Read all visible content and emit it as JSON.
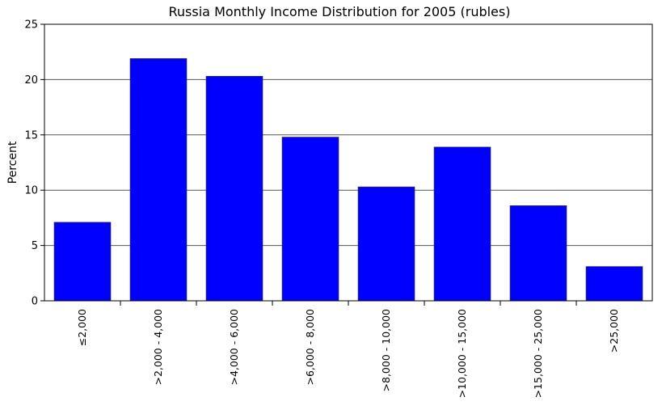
{
  "chart_data": {
    "type": "bar",
    "title": "Russia Monthly Income Distribution for 2005 (rubles)",
    "xlabel": "",
    "ylabel": "Percent",
    "categories": [
      "≤2,000",
      ">2,000 - 4,000",
      ">4,000 - 6,000",
      ">6,000 - 8,000",
      ">8,000 - 10,000",
      ">10,000 - 15,000",
      ">15,000 - 25,000",
      ">25,000"
    ],
    "values": [
      7.1,
      21.9,
      20.3,
      14.8,
      10.3,
      13.9,
      8.6,
      3.1
    ],
    "ylim": [
      0,
      25
    ],
    "yticks": [
      0,
      5,
      10,
      15,
      20,
      25
    ],
    "grid": "horizontal",
    "bar_color": "#0000ff"
  }
}
